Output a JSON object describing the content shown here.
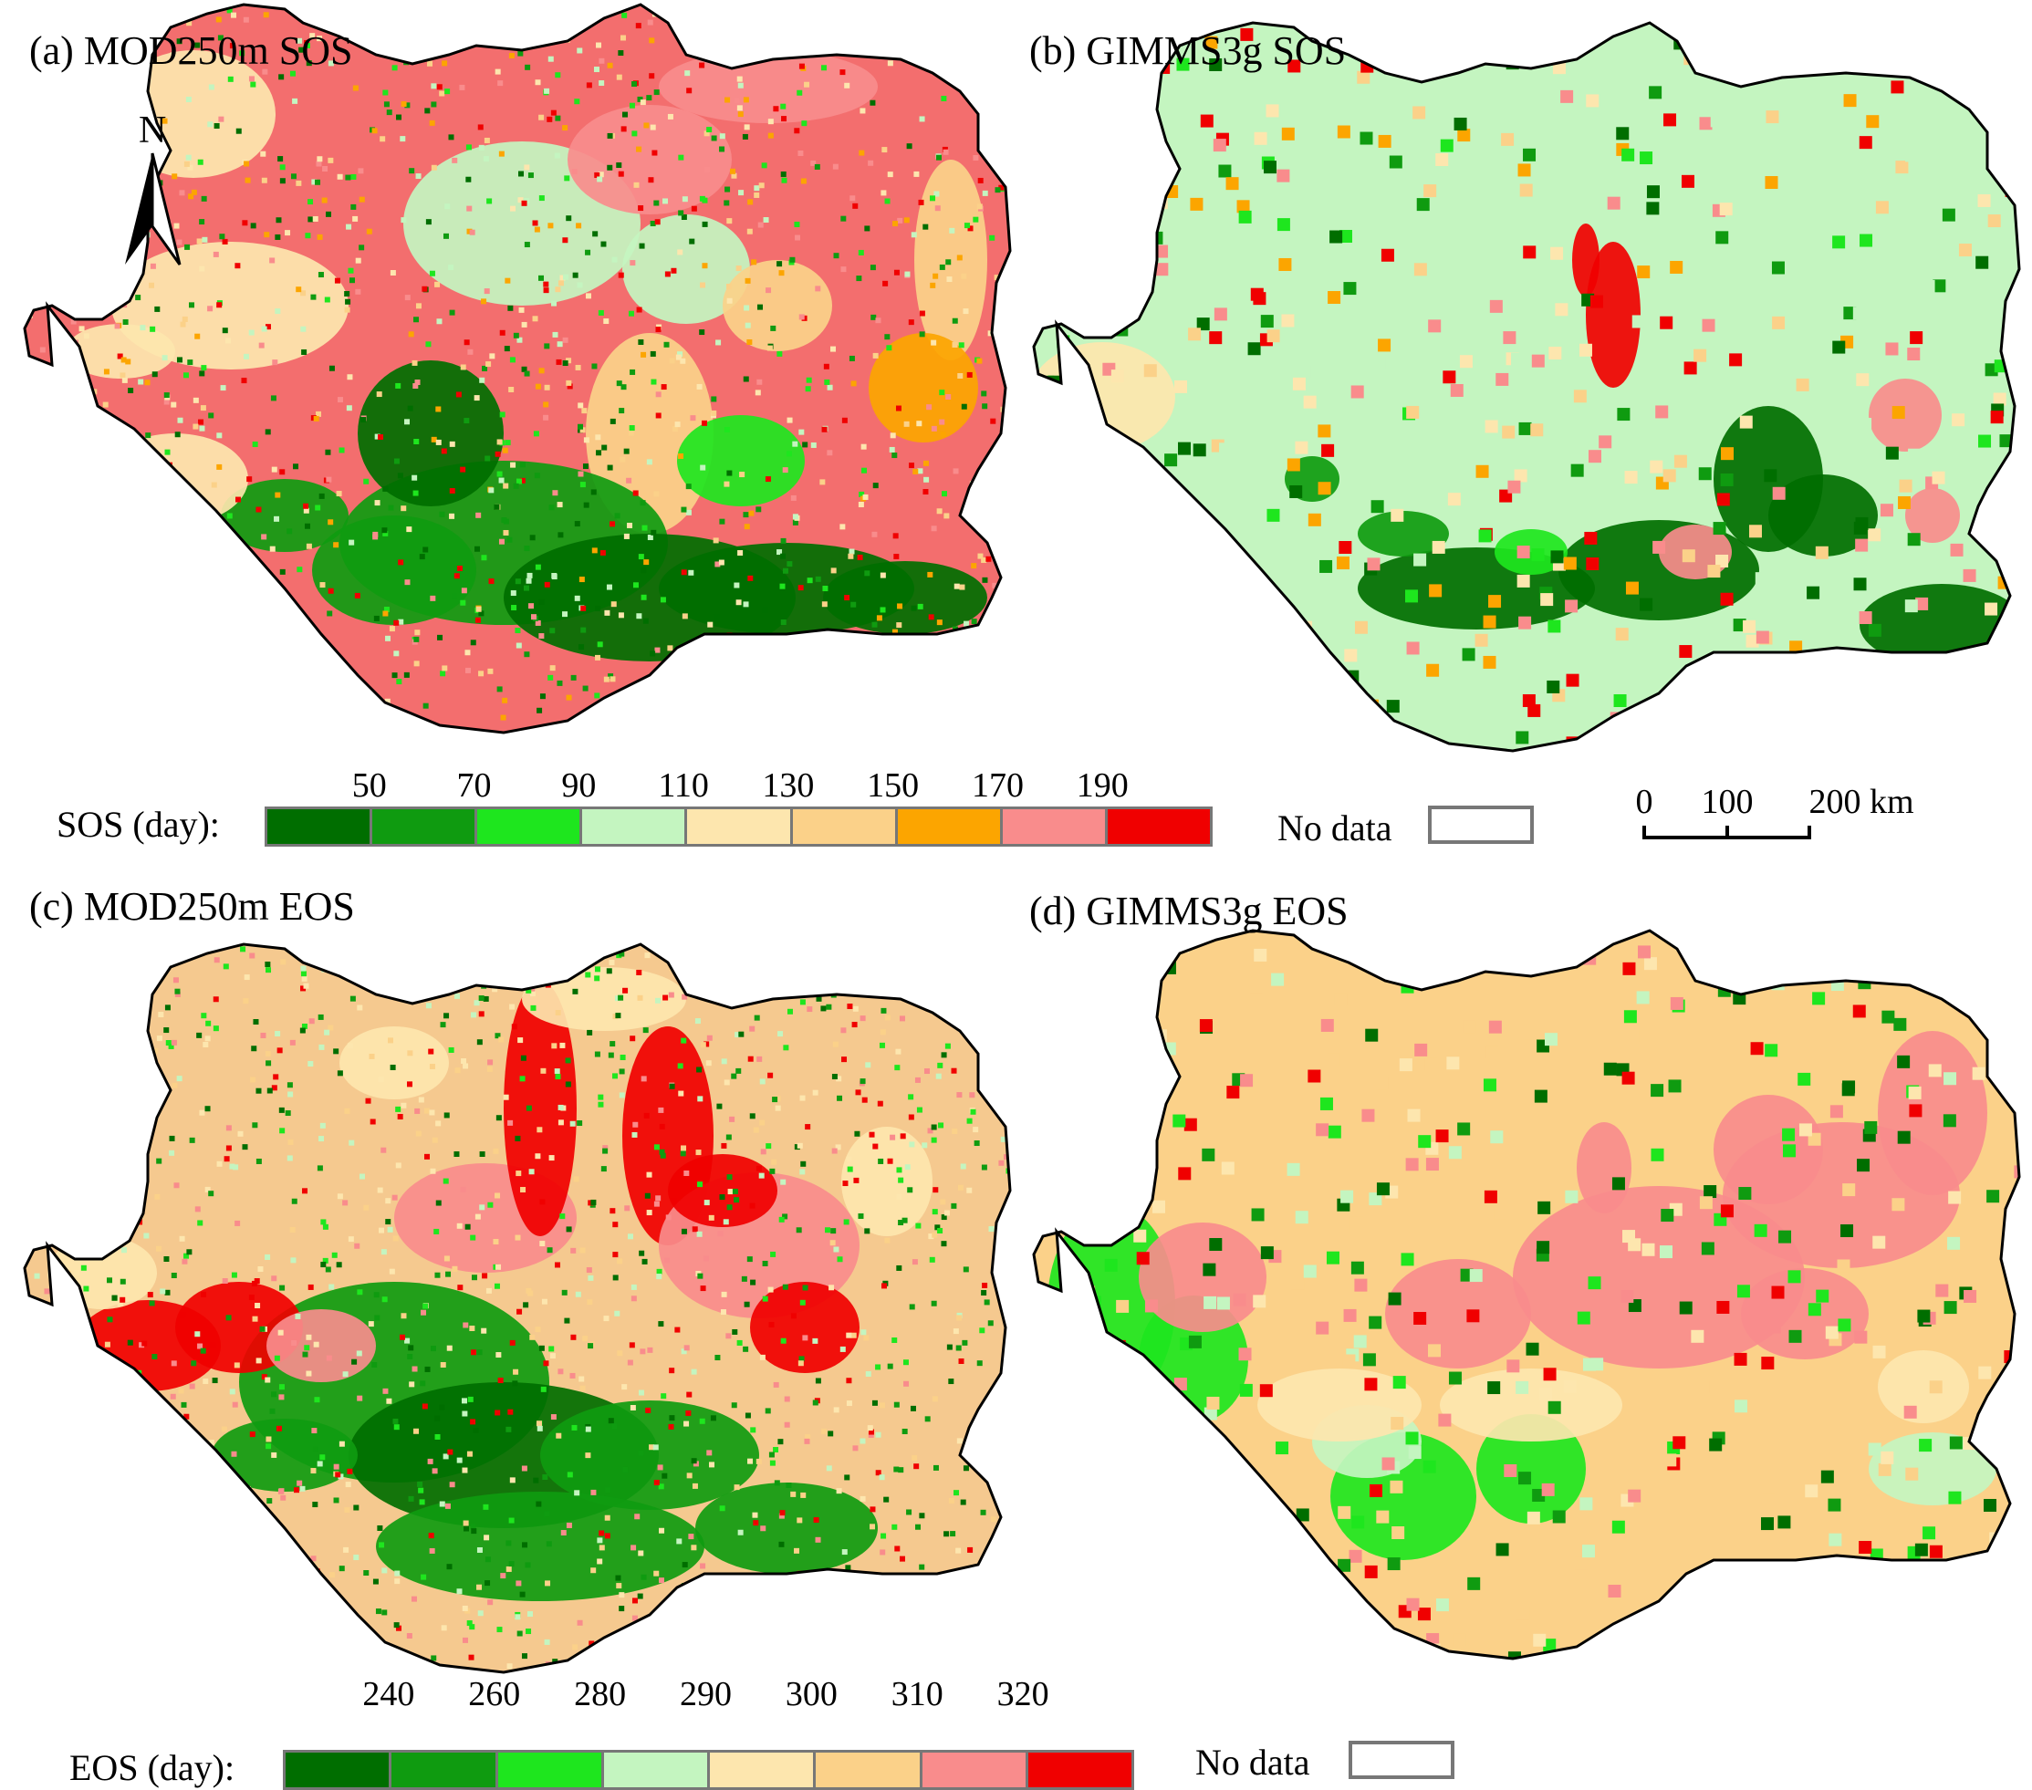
{
  "panels": {
    "a": {
      "title": "(a) MOD250m SOS",
      "base": "#f36e6e"
    },
    "b": {
      "title": "(b) GIMMS3g SOS",
      "base": "#c4f5c0"
    },
    "c": {
      "title": "(c) MOD250m EOS",
      "base": "#f5c98f"
    },
    "d": {
      "title": "(d) GIMMS3g EOS",
      "base": "#fbd189"
    }
  },
  "north_arrow": {
    "label": "N"
  },
  "sos_legend": {
    "label": "SOS (day):",
    "ticks": [
      "50",
      "70",
      "90",
      "110",
      "130",
      "150",
      "170",
      "190"
    ],
    "colors": [
      "#006e00",
      "#0f9b10",
      "#1ee61e",
      "#c4f5c0",
      "#fde6ae",
      "#fbd189",
      "#fca500",
      "#f98c8c",
      "#f00000"
    ]
  },
  "eos_legend": {
    "label": "EOS (day):",
    "ticks": [
      "240",
      "260",
      "280",
      "290",
      "300",
      "310",
      "320"
    ],
    "colors": [
      "#006e00",
      "#0f9b10",
      "#1ee61e",
      "#c4f5c0",
      "#fde6ae",
      "#fbd189",
      "#f98c8c",
      "#f00000"
    ]
  },
  "no_data": {
    "label": "No data"
  },
  "scale_bar": {
    "ticks": [
      "0",
      "100",
      "200 km"
    ]
  }
}
